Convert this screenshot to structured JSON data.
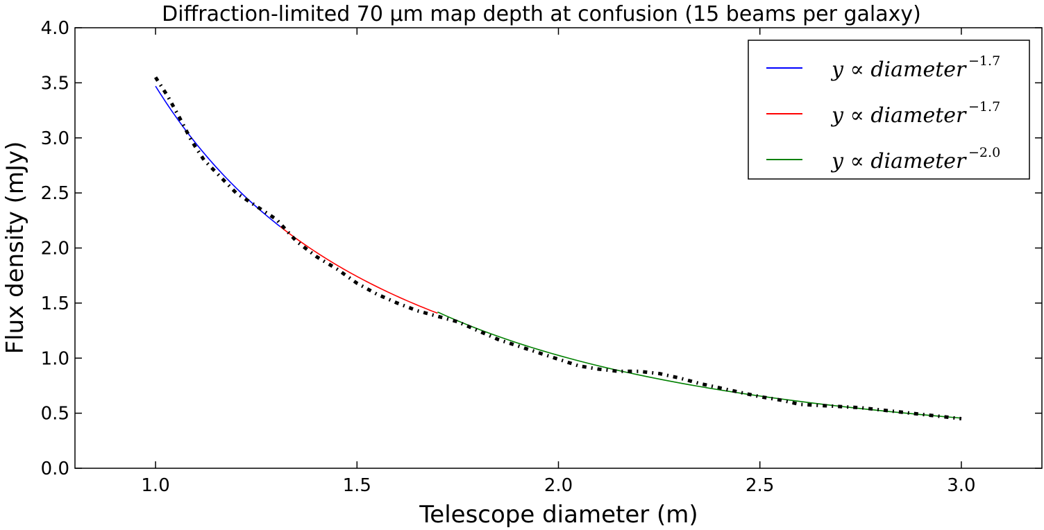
{
  "chart_data": {
    "type": "line",
    "title": "Diffraction-limited 70 μm map depth at confusion (15 beams per galaxy)",
    "xlabel": "Telescope diameter (m)",
    "ylabel": "Flux density (mJy)",
    "xlim": [
      0.8,
      3.2
    ],
    "ylim": [
      0.0,
      4.0
    ],
    "xticks": [
      1.0,
      1.5,
      2.0,
      2.5,
      3.0
    ],
    "xtick_labels": [
      "1.0",
      "1.5",
      "2.0",
      "2.5",
      "3.0"
    ],
    "yticks": [
      0.0,
      0.5,
      1.0,
      1.5,
      2.0,
      2.5,
      3.0,
      3.5,
      4.0
    ],
    "ytick_labels": [
      "0.0",
      "0.5",
      "1.0",
      "1.5",
      "2.0",
      "2.5",
      "3.0",
      "3.5",
      "4.0"
    ],
    "grid": false,
    "legend_position": "top-right",
    "series": [
      {
        "style": "dash-dot",
        "color": "#000000",
        "x": [
          1.0,
          1.03,
          1.06,
          1.09,
          1.12,
          1.16,
          1.2,
          1.25,
          1.3,
          1.35,
          1.4,
          1.45,
          1.5,
          1.55,
          1.6,
          1.65,
          1.7,
          1.75,
          1.8,
          1.85,
          1.9,
          1.95,
          2.0,
          2.05,
          2.1,
          2.15,
          2.2,
          2.25,
          2.3,
          2.35,
          2.4,
          2.45,
          2.5,
          2.55,
          2.6,
          2.65,
          2.7,
          2.75,
          2.8,
          2.85,
          2.9,
          2.95,
          3.0
        ],
        "y": [
          3.55,
          3.38,
          3.18,
          2.97,
          2.8,
          2.65,
          2.5,
          2.38,
          2.26,
          2.06,
          1.92,
          1.81,
          1.68,
          1.58,
          1.5,
          1.43,
          1.38,
          1.33,
          1.25,
          1.17,
          1.11,
          1.05,
          0.99,
          0.93,
          0.9,
          0.88,
          0.88,
          0.86,
          0.82,
          0.77,
          0.73,
          0.69,
          0.65,
          0.62,
          0.58,
          0.57,
          0.56,
          0.55,
          0.53,
          0.51,
          0.49,
          0.47,
          0.45
        ]
      },
      {
        "name": "y ∝ diameter",
        "exponent": "−1.7",
        "color": "#0000ff",
        "x_range": [
          1.0,
          1.31
        ],
        "coef": 3.47,
        "power": -1.7
      },
      {
        "name": "y ∝ diameter",
        "exponent": "−1.7",
        "color": "#ff0000",
        "x_range": [
          1.31,
          1.7
        ],
        "coef": 3.47,
        "power": -1.7
      },
      {
        "name": "y ∝ diameter",
        "exponent": "−2.0",
        "color": "#008000",
        "x_range": [
          1.7,
          3.0
        ],
        "coef": 4.1,
        "power": -2.0
      }
    ]
  }
}
